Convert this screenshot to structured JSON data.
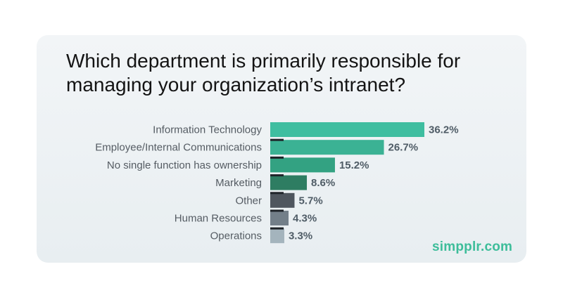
{
  "card": {
    "background": "#eef2f4"
  },
  "brand": "simpplr.com",
  "chart_data": {
    "type": "bar",
    "orientation": "horizontal",
    "title": "Which department is primarily responsible for managing your organization’s intranet?",
    "categories": [
      "Information Technology",
      "Employee/Internal Communications",
      "No single function has ownership",
      "Marketing",
      "Other",
      "Human Resources",
      "Operations"
    ],
    "values": [
      36.2,
      26.7,
      15.2,
      8.6,
      5.7,
      4.3,
      3.3
    ],
    "value_labels": [
      "36.2%",
      "26.7%",
      "15.2%",
      "8.6%",
      "5.7%",
      "4.3%",
      "3.3%"
    ],
    "colors": [
      "#3fbea0",
      "#3bb294",
      "#33a282",
      "#2e7d62",
      "#4f565e",
      "#737f89",
      "#a4b4bd"
    ],
    "xlim": [
      0,
      36.2
    ],
    "grid": false,
    "legend": "none"
  }
}
